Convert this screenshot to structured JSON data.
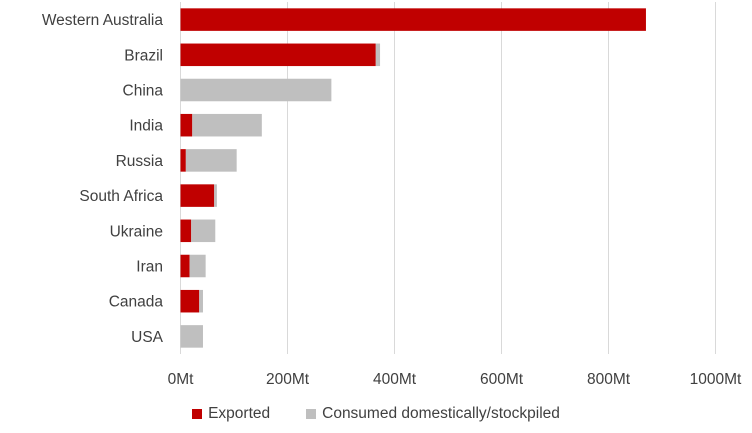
{
  "chart_data": {
    "type": "bar",
    "orientation": "horizontal",
    "stacked": true,
    "categories": [
      "Western Australia",
      "Brazil",
      "China",
      "India",
      "Russia",
      "South Africa",
      "Ukraine",
      "Iran",
      "Canada",
      "USA"
    ],
    "series": [
      {
        "name": "Exported",
        "color": "#c00000",
        "values": [
          870,
          365,
          0,
          22,
          10,
          63,
          20,
          17,
          35,
          0
        ]
      },
      {
        "name": "Consumed domestically/stockpiled",
        "color": "#bfbfbf",
        "values": [
          0,
          8,
          282,
          130,
          95,
          5,
          45,
          30,
          7,
          42
        ]
      }
    ],
    "x_ticks": [
      "0Mt",
      "200Mt",
      "400Mt",
      "600Mt",
      "800Mt",
      "1000Mt"
    ],
    "xlim": [
      0,
      1000
    ],
    "grid": "vertical",
    "legend_position": "bottom",
    "title": "",
    "xlabel": "",
    "ylabel": ""
  }
}
